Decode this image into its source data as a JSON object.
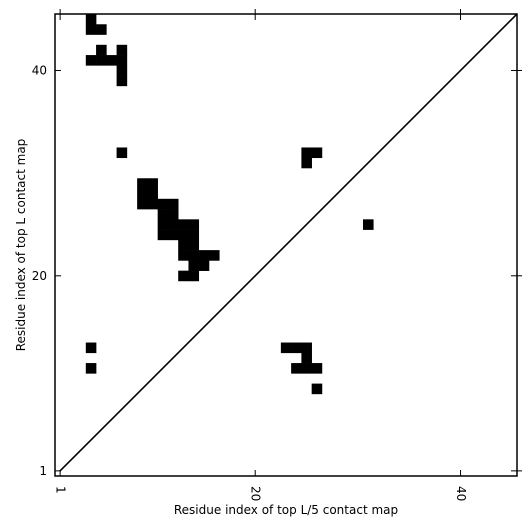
{
  "chart_data": {
    "type": "heatmap",
    "subtype": "contact-map-comparison",
    "xlabel": "Residue index of top L/5 contact map",
    "ylabel": "Residue index of top L contact map",
    "x_ticks": [
      1,
      20,
      40
    ],
    "y_ticks": [
      1,
      20,
      40
    ],
    "xlim": [
      0.5,
      45.5
    ],
    "ylim": [
      0.5,
      45.5
    ],
    "x_tick_rotation": "vertical",
    "diagonal_line": true,
    "cell_color": "#000000",
    "background": "#ffffff",
    "upper_triangle_contacts": [
      [
        4,
        45
      ],
      [
        4,
        44
      ],
      [
        5,
        44
      ],
      [
        5,
        42
      ],
      [
        4,
        41
      ],
      [
        5,
        41
      ],
      [
        6,
        41
      ],
      [
        7,
        41
      ],
      [
        7,
        42
      ],
      [
        7,
        40
      ],
      [
        7,
        39
      ],
      [
        7,
        32
      ],
      [
        9,
        29
      ],
      [
        10,
        29
      ],
      [
        9,
        28
      ],
      [
        10,
        28
      ],
      [
        9,
        27
      ],
      [
        10,
        27
      ],
      [
        11,
        27
      ],
      [
        12,
        27
      ],
      [
        11,
        26
      ],
      [
        12,
        26
      ],
      [
        11,
        25
      ],
      [
        12,
        25
      ],
      [
        13,
        25
      ],
      [
        14,
        25
      ],
      [
        11,
        24
      ],
      [
        12,
        24
      ],
      [
        13,
        24
      ],
      [
        14,
        24
      ],
      [
        13,
        23
      ],
      [
        14,
        23
      ],
      [
        13,
        22
      ],
      [
        14,
        22
      ],
      [
        15,
        22
      ],
      [
        16,
        22
      ],
      [
        14,
        21
      ],
      [
        15,
        21
      ],
      [
        13,
        20
      ],
      [
        14,
        20
      ],
      [
        25,
        32
      ],
      [
        26,
        32
      ],
      [
        25,
        31
      ],
      [
        31,
        25
      ]
    ],
    "lower_triangle_contacts": [
      [
        4,
        13
      ],
      [
        4,
        11
      ],
      [
        23,
        13
      ],
      [
        24,
        13
      ],
      [
        25,
        13
      ],
      [
        25,
        12
      ],
      [
        24,
        11
      ],
      [
        25,
        11
      ],
      [
        26,
        11
      ],
      [
        26,
        9
      ]
    ]
  }
}
